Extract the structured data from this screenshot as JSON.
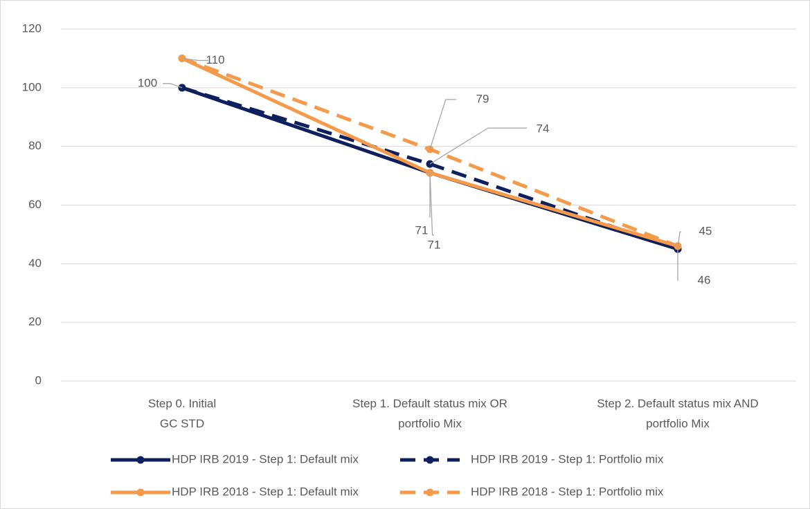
{
  "chart_data": {
    "type": "line",
    "categories": [
      "Step 0. Initial GC STD",
      "Step 1. Default status mix OR portfolio Mix",
      "Step 2. Default status mix AND portfolio Mix"
    ],
    "series": [
      {
        "name": "HDP IRB 2019 - Step 1: Default mix",
        "color": "#0d1f5c",
        "dashed": false,
        "values": [
          100,
          71,
          45
        ]
      },
      {
        "name": "HDP IRB 2019 - Step 1: Portfolio mix",
        "color": "#0d1f5c",
        "dashed": true,
        "values": [
          100,
          74,
          45
        ]
      },
      {
        "name": "HDP IRB 2018 - Step 1: Default mix",
        "color": "#f59a4a",
        "dashed": false,
        "values": [
          110,
          71,
          46
        ]
      },
      {
        "name": "HDP IRB 2018 - Step 1: Portfolio mix",
        "color": "#f59a4a",
        "dashed": true,
        "values": [
          110,
          79,
          46
        ]
      }
    ],
    "ylim": [
      0,
      120
    ],
    "yticks": [
      0,
      20,
      40,
      60,
      80,
      100,
      120
    ],
    "grid": true,
    "legend": "bottom"
  }
}
